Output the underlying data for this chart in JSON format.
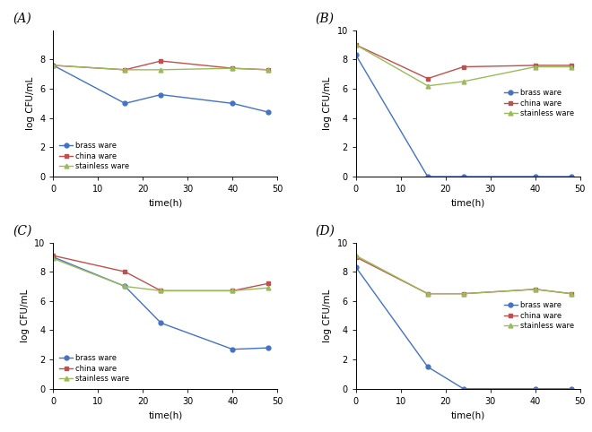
{
  "time_points": [
    0,
    16,
    24,
    40,
    48
  ],
  "panels": {
    "A": {
      "label": "(A)",
      "brass": [
        7.6,
        5.0,
        5.6,
        5.0,
        4.4
      ],
      "china": [
        7.6,
        7.3,
        7.9,
        7.4,
        7.3
      ],
      "stainless": [
        7.6,
        7.3,
        7.3,
        7.4,
        7.3
      ],
      "ylim": [
        0,
        10
      ],
      "yticks": [
        0,
        2,
        4,
        6,
        8
      ],
      "legend_loc": "lower left",
      "legend_bbox": null
    },
    "B": {
      "label": "(B)",
      "brass": [
        8.3,
        0.0,
        0.0,
        0.0,
        0.0
      ],
      "china": [
        9.0,
        6.7,
        7.5,
        7.6,
        7.6
      ],
      "stainless": [
        9.0,
        6.2,
        6.5,
        7.5,
        7.5
      ],
      "ylim": [
        0,
        10
      ],
      "yticks": [
        0,
        2,
        4,
        6,
        8,
        10
      ],
      "legend_loc": "center right",
      "legend_bbox": null
    },
    "C": {
      "label": "(C)",
      "brass": [
        9.0,
        7.0,
        4.5,
        2.7,
        2.8
      ],
      "china": [
        9.1,
        8.0,
        6.7,
        6.7,
        7.2
      ],
      "stainless": [
        8.9,
        7.0,
        6.7,
        6.7,
        6.9
      ],
      "ylim": [
        0,
        10
      ],
      "yticks": [
        0,
        2,
        4,
        6,
        8,
        10
      ],
      "legend_loc": "lower left",
      "legend_bbox": null
    },
    "D": {
      "label": "(D)",
      "brass": [
        8.3,
        1.5,
        0.0,
        0.0,
        0.0
      ],
      "china": [
        9.0,
        6.5,
        6.5,
        6.8,
        6.5
      ],
      "stainless": [
        9.1,
        6.5,
        6.5,
        6.8,
        6.5
      ],
      "ylim": [
        0,
        10
      ],
      "yticks": [
        0,
        2,
        4,
        6,
        8,
        10
      ],
      "legend_loc": "center right",
      "legend_bbox": null
    }
  },
  "colors": {
    "brass": "#4472C4",
    "china": "#C0504D",
    "stainless": "#9BBB59"
  },
  "markers": {
    "brass": "o",
    "china": "s",
    "stainless": "^"
  },
  "xlabel": "time(h)",
  "ylabel": "log CFU/mL",
  "xticks": [
    0,
    10,
    20,
    30,
    40,
    50
  ],
  "xlim": [
    0,
    50
  ],
  "background": "#ffffff"
}
